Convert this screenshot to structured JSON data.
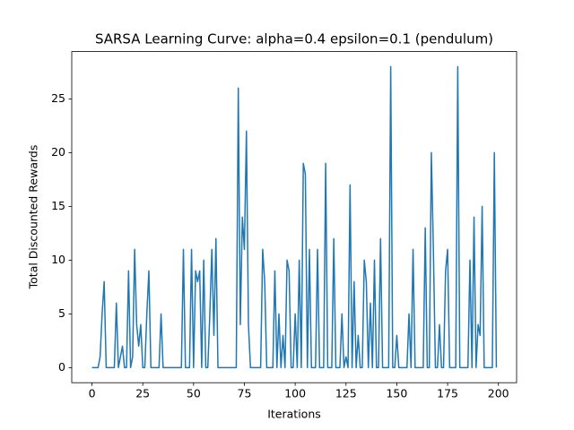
{
  "chart_data": {
    "type": "line",
    "title": "SARSA Learning Curve: alpha=0.4 epsilon=0.1 (pendulum)",
    "x_label": "Iterations",
    "y_label": "Total Discounted Rewards",
    "x": [
      0,
      1,
      2,
      3,
      4,
      5,
      6,
      7,
      8,
      9,
      10,
      11,
      12,
      13,
      14,
      15,
      16,
      17,
      18,
      19,
      20,
      21,
      22,
      23,
      24,
      25,
      26,
      27,
      28,
      29,
      30,
      31,
      32,
      33,
      34,
      35,
      36,
      37,
      38,
      39,
      40,
      41,
      42,
      43,
      44,
      45,
      46,
      47,
      48,
      49,
      50,
      51,
      52,
      53,
      54,
      55,
      56,
      57,
      58,
      59,
      60,
      61,
      62,
      63,
      64,
      65,
      66,
      67,
      68,
      69,
      70,
      71,
      72,
      73,
      74,
      75,
      76,
      77,
      78,
      79,
      80,
      81,
      82,
      83,
      84,
      85,
      86,
      87,
      88,
      89,
      90,
      91,
      92,
      93,
      94,
      95,
      96,
      97,
      98,
      99,
      100,
      101,
      102,
      103,
      104,
      105,
      106,
      107,
      108,
      109,
      110,
      111,
      112,
      113,
      114,
      115,
      116,
      117,
      118,
      119,
      120,
      121,
      122,
      123,
      124,
      125,
      126,
      127,
      128,
      129,
      130,
      131,
      132,
      133,
      134,
      135,
      136,
      137,
      138,
      139,
      140,
      141,
      142,
      143,
      144,
      145,
      146,
      147,
      148,
      149,
      150,
      151,
      152,
      153,
      154,
      155,
      156,
      157,
      158,
      159,
      160,
      161,
      162,
      163,
      164,
      165,
      166,
      167,
      168,
      169,
      170,
      171,
      172,
      173,
      174,
      175,
      176,
      177,
      178,
      179,
      180,
      181,
      182,
      183,
      184,
      185,
      186,
      187,
      188,
      189,
      190,
      191,
      192,
      193,
      194,
      195,
      196,
      197,
      198,
      199
    ],
    "series": [
      {
        "color": "#1f77b4",
        "values": [
          0,
          0,
          0,
          0,
          1,
          5,
          8,
          0,
          0,
          0,
          0,
          0,
          6,
          0,
          1,
          2,
          0,
          0,
          9,
          0,
          1,
          11,
          4,
          2,
          4,
          0,
          0,
          5,
          9,
          0,
          0,
          0,
          0,
          0,
          5,
          0,
          0,
          0,
          0,
          0,
          0,
          0,
          0,
          0,
          0,
          11,
          0,
          0,
          0,
          11,
          0,
          9,
          8,
          9,
          0,
          10,
          0,
          0,
          5,
          11,
          3,
          12,
          0,
          0,
          0,
          0,
          0,
          0,
          0,
          0,
          0,
          0,
          26,
          4,
          14,
          11,
          22,
          4,
          0,
          0,
          0,
          0,
          0,
          0,
          11,
          8,
          0,
          0,
          0,
          0,
          9,
          0,
          5,
          0,
          3,
          0,
          10,
          9,
          0,
          0,
          5,
          0,
          10,
          0,
          19,
          18,
          0,
          11,
          0,
          0,
          0,
          11,
          0,
          0,
          0,
          19,
          0,
          0,
          0,
          12,
          0,
          0,
          0,
          5,
          0,
          1,
          0,
          17,
          0,
          8,
          0,
          3,
          0,
          0,
          10,
          8,
          0,
          6,
          0,
          10,
          0,
          0,
          12,
          0,
          0,
          0,
          0,
          28,
          0,
          0,
          3,
          0,
          0,
          0,
          0,
          0,
          5,
          0,
          11,
          0,
          0,
          0,
          0,
          0,
          13,
          0,
          0,
          20,
          11,
          0,
          0,
          4,
          0,
          0,
          9,
          11,
          0,
          0,
          0,
          0,
          28,
          0,
          0,
          0,
          0,
          0,
          10,
          0,
          14,
          0,
          4,
          3,
          15,
          0,
          0,
          0,
          0,
          0,
          20,
          0
        ]
      }
    ],
    "xlim": [
      -9.95,
      208.95
    ],
    "ylim": [
      -1.4,
      29.4
    ],
    "xticks": [
      0,
      25,
      50,
      75,
      100,
      125,
      150,
      175,
      200
    ],
    "yticks": [
      0,
      5,
      10,
      15,
      20,
      25
    ]
  }
}
